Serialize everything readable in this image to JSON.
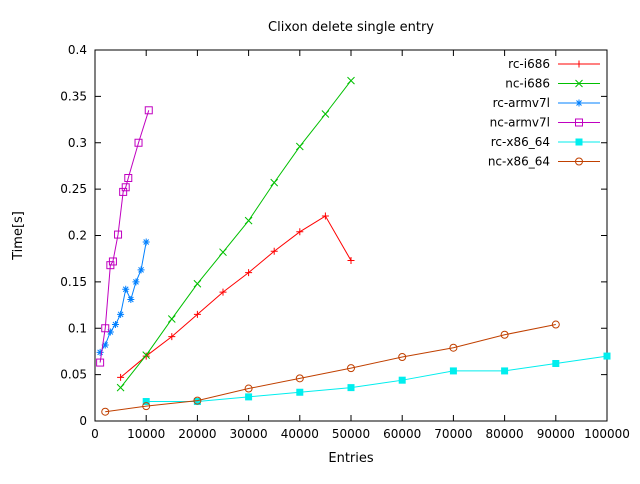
{
  "chart_data": {
    "type": "line",
    "title": "Clixon delete single entry",
    "xlabel": "Entries",
    "ylabel": "Time[s]",
    "xlim": [
      0,
      100000
    ],
    "ylim": [
      0,
      0.4
    ],
    "grid": false,
    "legend_position": "top-right-inside",
    "xticks": [
      0,
      10000,
      20000,
      30000,
      40000,
      50000,
      60000,
      70000,
      80000,
      90000,
      100000
    ],
    "xtick_labels": [
      "0",
      "10000",
      "20000",
      "30000",
      "40000",
      "50000",
      "60000",
      "70000",
      "80000",
      "90000",
      "100000"
    ],
    "yticks": [
      0,
      0.05,
      0.1,
      0.15,
      0.2,
      0.25,
      0.3,
      0.35,
      0.4
    ],
    "ytick_labels": [
      "0",
      "0.05",
      "0.1",
      "0.15",
      "0.2",
      "0.25",
      "0.3",
      "0.35",
      "0.4"
    ],
    "series": [
      {
        "name": "rc-i686",
        "color": "#ff0000",
        "marker": "plus",
        "points": [
          [
            5000,
            0.047
          ],
          [
            10000,
            0.07
          ],
          [
            15000,
            0.091
          ],
          [
            20000,
            0.115
          ],
          [
            25000,
            0.139
          ],
          [
            30000,
            0.16
          ],
          [
            35000,
            0.183
          ],
          [
            40000,
            0.204
          ],
          [
            45000,
            0.221
          ],
          [
            50000,
            0.173
          ]
        ]
      },
      {
        "name": "nc-i686",
        "color": "#00c000",
        "marker": "cross",
        "points": [
          [
            5000,
            0.036
          ],
          [
            10000,
            0.071
          ],
          [
            15000,
            0.11
          ],
          [
            20000,
            0.148
          ],
          [
            25000,
            0.182
          ],
          [
            30000,
            0.216
          ],
          [
            35000,
            0.257
          ],
          [
            40000,
            0.296
          ],
          [
            45000,
            0.331
          ],
          [
            50000,
            0.367
          ]
        ]
      },
      {
        "name": "rc-armv7l",
        "color": "#0080ff",
        "marker": "asterisk",
        "points": [
          [
            1000,
            0.074
          ],
          [
            2000,
            0.082
          ],
          [
            3000,
            0.096
          ],
          [
            4000,
            0.104
          ],
          [
            5000,
            0.115
          ],
          [
            6000,
            0.142
          ],
          [
            7000,
            0.131
          ],
          [
            8000,
            0.15
          ],
          [
            9000,
            0.163
          ],
          [
            10000,
            0.193
          ]
        ]
      },
      {
        "name": "nc-armv7l",
        "color": "#c000c0",
        "marker": "square-open",
        "points": [
          [
            1000,
            0.063
          ],
          [
            2000,
            0.1
          ],
          [
            3000,
            0.168
          ],
          [
            3500,
            0.172
          ],
          [
            4500,
            0.201
          ],
          [
            5500,
            0.247
          ],
          [
            6000,
            0.252
          ],
          [
            6500,
            0.262
          ],
          [
            8500,
            0.3
          ],
          [
            10500,
            0.335
          ]
        ]
      },
      {
        "name": "rc-x86_64",
        "color": "#00eeee",
        "marker": "square-filled",
        "points": [
          [
            10000,
            0.021
          ],
          [
            20000,
            0.021
          ],
          [
            30000,
            0.026
          ],
          [
            40000,
            0.031
          ],
          [
            50000,
            0.036
          ],
          [
            60000,
            0.044
          ],
          [
            70000,
            0.054
          ],
          [
            80000,
            0.054
          ],
          [
            90000,
            0.062
          ],
          [
            100000,
            0.07
          ]
        ]
      },
      {
        "name": "nc-x86_64",
        "color": "#c04000",
        "marker": "circle-open",
        "points": [
          [
            2000,
            0.01
          ],
          [
            10000,
            0.016
          ],
          [
            20000,
            0.022
          ],
          [
            30000,
            0.035
          ],
          [
            40000,
            0.046
          ],
          [
            50000,
            0.057
          ],
          [
            60000,
            0.069
          ],
          [
            70000,
            0.079
          ],
          [
            80000,
            0.093
          ],
          [
            90000,
            0.104
          ]
        ]
      }
    ]
  }
}
